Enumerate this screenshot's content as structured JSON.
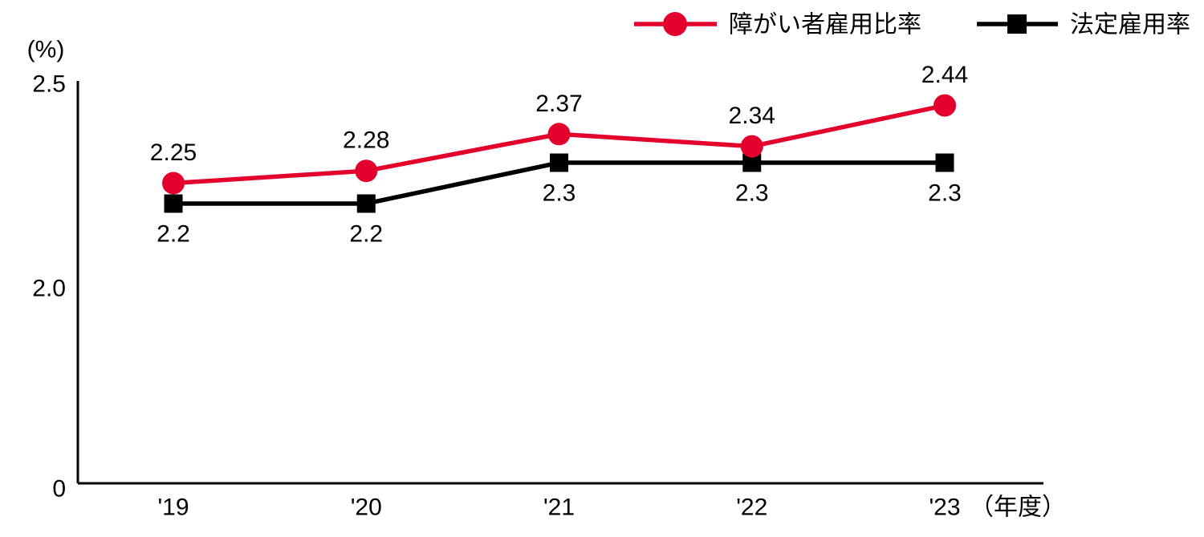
{
  "chart_data": {
    "type": "line",
    "title": "",
    "categories": [
      "'19",
      "'20",
      "'21",
      "'22",
      "'23"
    ],
    "x_axis_suffix": "（年度）",
    "y_axis_unit": "(%)",
    "y_ticks": [
      {
        "value": 2.5,
        "label": "2.5"
      },
      {
        "value": 2.0,
        "label": "2.0"
      },
      {
        "value": 0,
        "label": "0"
      }
    ],
    "ylim": [
      0,
      2.5
    ],
    "grid": false,
    "legend_position": "top-right",
    "y_axis_note": "axis non-linear: range below 2.0 is compressed",
    "series": [
      {
        "name": "障がい者雇用比率",
        "marker": "circle",
        "color": "#e4002d",
        "values": [
          2.25,
          2.28,
          2.37,
          2.34,
          2.44
        ],
        "labels": [
          "2.25",
          "2.28",
          "2.37",
          "2.34",
          "2.44"
        ],
        "label_position": "above"
      },
      {
        "name": "法定雇用率",
        "marker": "square",
        "color": "#000000",
        "values": [
          2.2,
          2.2,
          2.3,
          2.3,
          2.3
        ],
        "labels": [
          "2.2",
          "2.2",
          "2.3",
          "2.3",
          "2.3"
        ],
        "label_position": "below"
      }
    ],
    "colors": {
      "axis": "#000000",
      "text": "#000000",
      "background": "#ffffff"
    }
  }
}
